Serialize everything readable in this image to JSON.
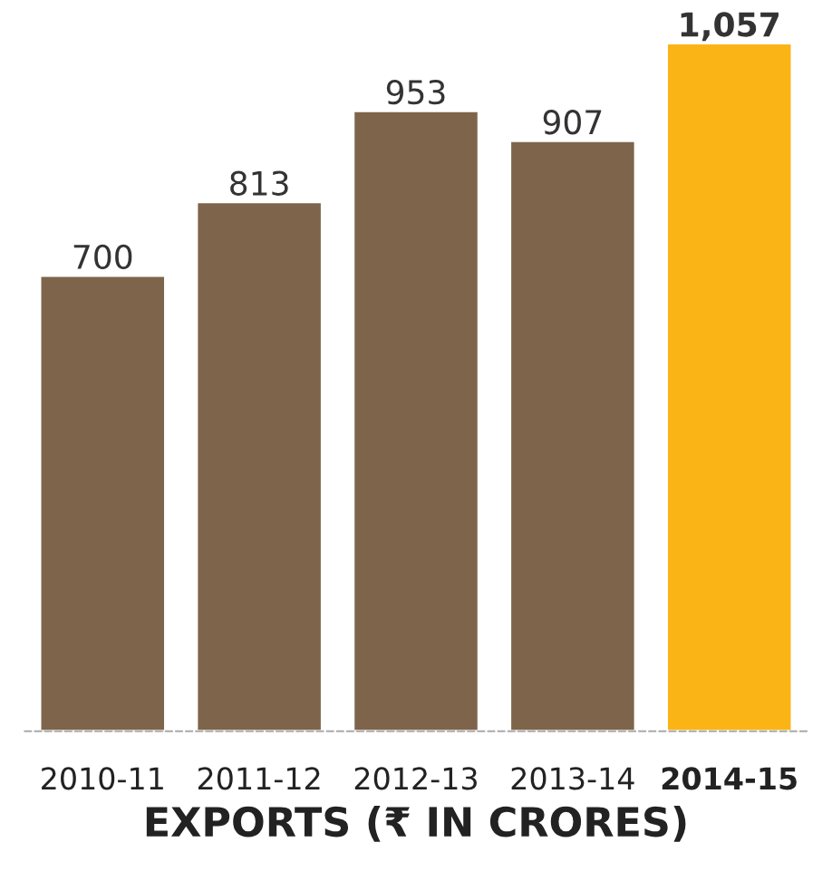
{
  "chart_data": {
    "type": "bar",
    "xlabel": "EXPORTS (₹ IN CRORES)",
    "categories": [
      "2010-11",
      "2011-12",
      "2012-13",
      "2013-14",
      "2014-15"
    ],
    "values": [
      700,
      813,
      953,
      907,
      1057
    ],
    "colors": [
      "#7e644a",
      "#7e644a",
      "#7e644a",
      "#7e644a",
      "#fbb416"
    ],
    "value_labels": [
      "700",
      "813",
      "953",
      "907",
      "1,057"
    ]
  }
}
